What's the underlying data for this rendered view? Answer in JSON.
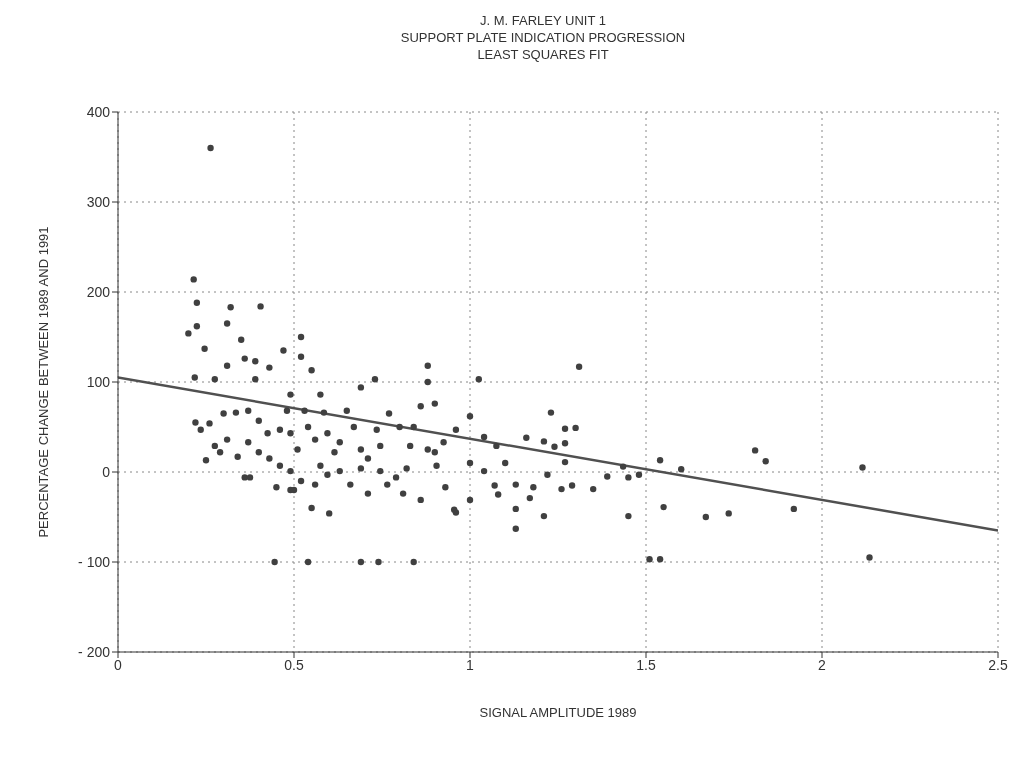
{
  "chart_data": {
    "type": "scatter",
    "title": "J. M. FARLEY UNIT 1\nSUPPORT PLATE INDICATION PROGRESSION\nLEAST SQUARES FIT",
    "xlabel": "SIGNAL AMPLITUDE 1989",
    "ylabel": "PERCENTAGE CHANGE BETWEEN 1989 AND 1991",
    "xlim": [
      0,
      2.5
    ],
    "xticks": [
      0,
      0.5,
      1,
      1.5,
      2,
      2.5
    ],
    "ylim": [
      -200,
      400
    ],
    "yticks": [
      -200,
      -100,
      0,
      100,
      200,
      300,
      400
    ],
    "grid": true,
    "legend": false,
    "marker": "circle",
    "series": [
      {
        "color": "#404040",
        "x": [
          0.263,
          0.215,
          0.224,
          0.224,
          0.2,
          0.246,
          0.32,
          0.31,
          0.405,
          0.35,
          0.52,
          0.47,
          0.52,
          0.55,
          0.218,
          0.275,
          0.31,
          0.39,
          0.39,
          0.43,
          0.36,
          0.575,
          0.585,
          0.65,
          0.69,
          0.73,
          0.88,
          0.88,
          0.86,
          0.9,
          0.25,
          0.22,
          0.26,
          0.29,
          0.34,
          0.36,
          0.45,
          0.55,
          0.6,
          0.5,
          0.71,
          0.81,
          0.86,
          0.445,
          0.54,
          0.69,
          0.74,
          0.84,
          1.31,
          1.025,
          1.23,
          1.27,
          1.3,
          1.27,
          1.24,
          1.21,
          1.16,
          1.0,
          1.04,
          1.27,
          1.435,
          1.54,
          1.6,
          1.45,
          1.55,
          1.67,
          1.735,
          1.13,
          1.13,
          1.21,
          1.26,
          1.35,
          1.39,
          1.45,
          1.48,
          1.29,
          1.08,
          1.17,
          0.96,
          0.955,
          1.0,
          0.93,
          1.07,
          1.13,
          1.18,
          1.22,
          1.1,
          1.04,
          1.0,
          0.96,
          0.925,
          1.075,
          1.54,
          1.51,
          1.81,
          1.84,
          1.92,
          2.115,
          2.135,
          0.3,
          0.335,
          0.37,
          0.4,
          0.425,
          0.46,
          0.48,
          0.49,
          0.49,
          0.51,
          0.54,
          0.56,
          0.595,
          0.615,
          0.63,
          0.67,
          0.69,
          0.71,
          0.735,
          0.745,
          0.77,
          0.8,
          0.83,
          0.84,
          0.88,
          0.905,
          0.9,
          0.31,
          0.37,
          0.4,
          0.43,
          0.46,
          0.49,
          0.52,
          0.56,
          0.595,
          0.63,
          0.66,
          0.69,
          0.745,
          0.765,
          0.79,
          0.82,
          0.375,
          0.275,
          0.235,
          0.53,
          0.575,
          0.49
        ],
        "values": [
          360,
          214,
          188,
          162,
          154,
          137,
          183,
          165,
          184,
          147,
          150,
          135,
          128,
          113,
          105,
          103,
          118,
          103,
          123,
          116,
          126,
          86,
          66,
          68,
          94,
          103,
          118,
          100,
          73,
          76,
          13,
          55,
          54,
          22,
          17,
          -6,
          -17,
          -40,
          -46,
          -20,
          -24,
          -24,
          -31,
          -100,
          -100,
          -100,
          -100,
          -100,
          117,
          103,
          66,
          48,
          49,
          32,
          28,
          34,
          38,
          62,
          39,
          11,
          6,
          13,
          3,
          -49,
          -39,
          -50,
          -46,
          -63,
          -41,
          -49,
          -19,
          -19,
          -5,
          -6,
          -3,
          -15,
          -25,
          -29,
          -45,
          -42,
          -31,
          -17,
          -15,
          -14,
          -17,
          -3,
          10,
          1,
          10,
          47,
          33,
          29,
          -97,
          -97,
          24,
          12,
          -41,
          5,
          -95,
          65,
          66,
          68,
          57,
          43,
          47,
          68,
          86,
          43,
          25,
          50,
          36,
          43,
          22,
          33,
          50,
          25,
          15,
          47,
          29,
          65,
          50,
          29,
          50,
          25,
          7,
          22,
          36,
          33,
          22,
          15,
          7,
          1,
          -10,
          -14,
          -3,
          1,
          -14,
          4,
          1,
          -14,
          -6,
          4,
          -6,
          29,
          47,
          68,
          7,
          -20
        ]
      },
      {
        "type": "line",
        "color": "#505050",
        "line_style": "solid",
        "marker": "none",
        "x": [
          0,
          2.5
        ],
        "values": [
          105,
          -65
        ]
      }
    ]
  }
}
